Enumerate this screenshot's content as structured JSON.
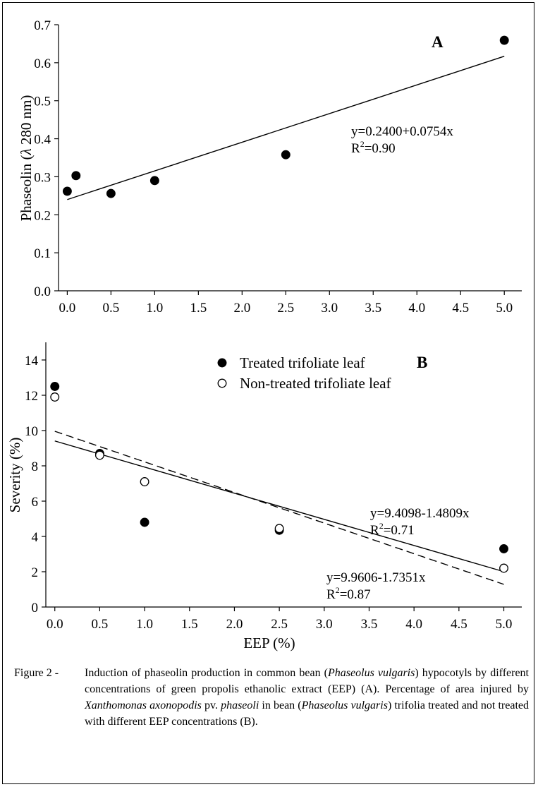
{
  "chart_data": [
    {
      "type": "scatter",
      "panel_label": "A",
      "ylabel_parts": [
        "Phaseolin (",
        "λ",
        " 280 nm)"
      ],
      "xlim": [
        -0.1,
        5.2
      ],
      "ylim": [
        0.0,
        0.7
      ],
      "xticks": [
        "0.0",
        "0.5",
        "1.0",
        "1.5",
        "2.0",
        "2.5",
        "3.0",
        "3.5",
        "4.0",
        "4.5",
        "5.0"
      ],
      "yticks": [
        "0.0",
        "0.1",
        "0.2",
        "0.3",
        "0.4",
        "0.5",
        "0.6",
        "0.7"
      ],
      "grid": false,
      "series": [
        {
          "marker": "filled-circle",
          "x": [
            0.0,
            0.1,
            0.5,
            1.0,
            2.5,
            5.0
          ],
          "y": [
            0.262,
            0.303,
            0.256,
            0.29,
            0.358,
            0.659
          ]
        }
      ],
      "regressions": [
        {
          "style": "solid",
          "intercept": 0.24,
          "slope": 0.0754,
          "equation": "y=0.2400+0.0754x",
          "r2_label": "R",
          "r2_sup": "2",
          "r2_value": "=0.90"
        }
      ]
    },
    {
      "type": "scatter",
      "panel_label": "B",
      "xlabel": "EEP (%)",
      "ylabel": "Severity (%)",
      "xlim": [
        -0.1,
        5.2
      ],
      "ylim": [
        0,
        15
      ],
      "xticks": [
        "0.0",
        "0.5",
        "1.0",
        "1.5",
        "2.0",
        "2.5",
        "3.0",
        "3.5",
        "4.0",
        "4.5",
        "5.0"
      ],
      "yticks": [
        "0",
        "2",
        "4",
        "6",
        "8",
        "10",
        "12",
        "14"
      ],
      "grid": false,
      "legend_position": "top-center",
      "series": [
        {
          "name": "Treated trifoliate leaf",
          "marker": "filled-circle",
          "x": [
            0.0,
            0.5,
            1.0,
            2.5,
            5.0
          ],
          "y": [
            12.5,
            8.7,
            4.8,
            4.35,
            3.3
          ]
        },
        {
          "name": "Non-treated trifoliate leaf",
          "marker": "open-circle",
          "x": [
            0.0,
            0.5,
            1.0,
            2.5,
            5.0
          ],
          "y": [
            11.9,
            8.6,
            7.1,
            4.45,
            2.2
          ]
        }
      ],
      "regressions": [
        {
          "style": "solid",
          "intercept": 9.4098,
          "slope": -1.4809,
          "equation": "y=9.4098-1.4809x",
          "r2_label": "R",
          "r2_sup": "2",
          "r2_value": "=0.71"
        },
        {
          "style": "dashed",
          "intercept": 9.9606,
          "slope": -1.7351,
          "equation": "y=9.9606-1.7351x",
          "r2_label": "R",
          "r2_sup": "2",
          "r2_value": "=0.87"
        }
      ]
    }
  ],
  "caption": {
    "label": "Figure 2 -",
    "parts": [
      {
        "t": "Induction of phaseolin production in common bean (",
        "i": false
      },
      {
        "t": "Phaseolus vulgaris",
        "i": true
      },
      {
        "t": ") hypocotyls by different concentrations of green propolis ethanolic extract (EEP) (A). Percentage of area injured by ",
        "i": false
      },
      {
        "t": "Xanthomonas axonopodis",
        "i": true
      },
      {
        "t": " pv. ",
        "i": false
      },
      {
        "t": "phaseoli",
        "i": true
      },
      {
        "t": " in bean (",
        "i": false
      },
      {
        "t": "Phaseolus vulgaris",
        "i": true
      },
      {
        "t": ") trifolia treated and not treated with different EEP concentrations (B).",
        "i": false
      }
    ]
  }
}
